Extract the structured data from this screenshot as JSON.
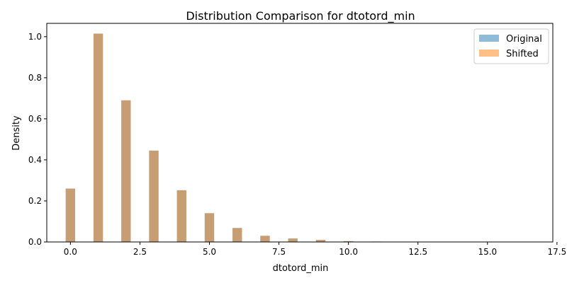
{
  "chart_data": {
    "type": "bar",
    "title": "Distribution Comparison for dtotord_min",
    "xlabel": "dtotord_min",
    "ylabel": "Density",
    "xlim": [
      -0.85,
      17.35
    ],
    "ylim": [
      0,
      1.065
    ],
    "xticks": [
      "0.0",
      "2.5",
      "5.0",
      "7.5",
      "10.0",
      "12.5",
      "15.0",
      "17.5"
    ],
    "xtick_values": [
      0,
      2.5,
      5,
      7.5,
      10,
      12.5,
      15,
      17.5
    ],
    "yticks": [
      "0.0",
      "0.2",
      "0.4",
      "0.6",
      "0.8",
      "1.0"
    ],
    "ytick_values": [
      0,
      0.2,
      0.4,
      0.6,
      0.8,
      1.0
    ],
    "bin_width": 0.34,
    "legend_position": "top-right",
    "colors": {
      "original": "#1f77b4",
      "shifted": "#ff7f0e",
      "overlap": "#c49c70",
      "alpha": 0.5
    },
    "x": [
      0,
      1,
      2,
      3,
      4,
      5,
      6,
      7,
      8,
      9,
      10,
      11
    ],
    "series": [
      {
        "name": "Original",
        "values": [
          0.26,
          1.015,
          0.69,
          0.445,
          0.252,
          0.14,
          0.068,
          0.03,
          0.017,
          0.01,
          0.004,
          0.002
        ]
      },
      {
        "name": "Shifted",
        "values": [
          0.26,
          1.015,
          0.69,
          0.445,
          0.252,
          0.14,
          0.068,
          0.03,
          0.017,
          0.01,
          0.004,
          0.002
        ]
      }
    ]
  }
}
